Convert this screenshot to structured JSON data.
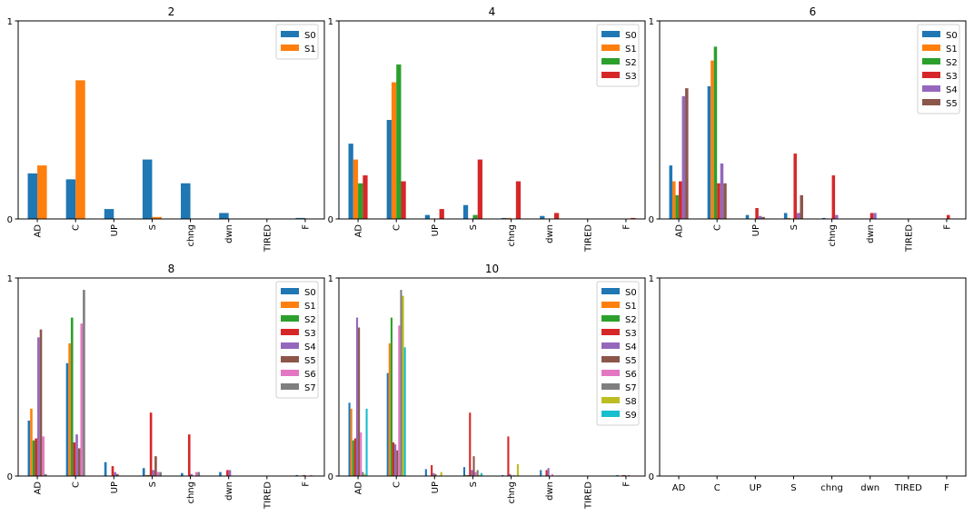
{
  "chart_data": [
    {
      "type": "bar",
      "title": "2",
      "categories": [
        "AD",
        "C",
        "UP",
        "S",
        "chng",
        "dwn",
        "TIRED",
        "F"
      ],
      "ylim": [
        0,
        1
      ],
      "yticks": [
        "0",
        "1"
      ],
      "rotated_xticks": true,
      "legend": "top-right",
      "series": [
        {
          "name": "S0",
          "values": [
            0.23,
            0.2,
            0.05,
            0.3,
            0.18,
            0.03,
            0.0,
            0.005
          ]
        },
        {
          "name": "S1",
          "values": [
            0.27,
            0.7,
            0.0,
            0.01,
            0.0,
            0.0,
            0.0,
            0.0
          ]
        }
      ]
    },
    {
      "type": "bar",
      "title": "4",
      "categories": [
        "AD",
        "C",
        "UP",
        "S",
        "chng",
        "dwn",
        "TIRED",
        "F"
      ],
      "ylim": [
        0,
        1
      ],
      "yticks": [
        "0",
        "1"
      ],
      "rotated_xticks": true,
      "legend": "top-right",
      "series": [
        {
          "name": "S0",
          "values": [
            0.38,
            0.5,
            0.02,
            0.07,
            0.005,
            0.015,
            0.0,
            0.0
          ]
        },
        {
          "name": "S1",
          "values": [
            0.3,
            0.69,
            0.0,
            0.0,
            0.005,
            0.0,
            0.0,
            0.0
          ]
        },
        {
          "name": "S2",
          "values": [
            0.18,
            0.78,
            0.0,
            0.02,
            0.0,
            0.0,
            0.0,
            0.0
          ]
        },
        {
          "name": "S3",
          "values": [
            0.22,
            0.19,
            0.05,
            0.3,
            0.19,
            0.03,
            0.0,
            0.005
          ]
        }
      ]
    },
    {
      "type": "bar",
      "title": "6",
      "categories": [
        "AD",
        "C",
        "UP",
        "S",
        "chng",
        "dwn",
        "TIRED",
        "F"
      ],
      "ylim": [
        0,
        1
      ],
      "yticks": [
        "0",
        "1"
      ],
      "rotated_xticks": true,
      "legend": "top-right",
      "series": [
        {
          "name": "S0",
          "values": [
            0.27,
            0.67,
            0.02,
            0.03,
            0.005,
            0.0,
            0.0,
            0.0
          ]
        },
        {
          "name": "S1",
          "values": [
            0.19,
            0.8,
            0.0,
            0.005,
            0.0,
            0.0,
            0.0,
            0.0
          ]
        },
        {
          "name": "S2",
          "values": [
            0.12,
            0.87,
            0.0,
            0.0,
            0.0,
            0.0,
            0.0,
            0.0
          ]
        },
        {
          "name": "S3",
          "values": [
            0.19,
            0.18,
            0.055,
            0.33,
            0.22,
            0.03,
            0.0,
            0.02
          ]
        },
        {
          "name": "S4",
          "values": [
            0.62,
            0.28,
            0.015,
            0.03,
            0.02,
            0.03,
            0.0,
            0.0
          ]
        },
        {
          "name": "S5",
          "values": [
            0.66,
            0.18,
            0.01,
            0.12,
            0.0,
            0.0,
            0.0,
            0.0
          ]
        }
      ]
    },
    {
      "type": "bar",
      "title": "8",
      "categories": [
        "AD",
        "C",
        "UP",
        "S",
        "chng",
        "dwn",
        "TIRED",
        "F"
      ],
      "ylim": [
        0,
        1
      ],
      "yticks": [
        "0",
        "1"
      ],
      "rotated_xticks": true,
      "legend": "top-right",
      "series": [
        {
          "name": "S0",
          "values": [
            0.28,
            0.57,
            0.07,
            0.04,
            0.015,
            0.02,
            0.0,
            0.005
          ]
        },
        {
          "name": "S1",
          "values": [
            0.34,
            0.67,
            0.0,
            0.005,
            0.0,
            0.0,
            0.0,
            0.0
          ]
        },
        {
          "name": "S2",
          "values": [
            0.18,
            0.8,
            0.0,
            0.005,
            0.0,
            0.0,
            0.0,
            0.0
          ]
        },
        {
          "name": "S3",
          "values": [
            0.19,
            0.17,
            0.05,
            0.32,
            0.21,
            0.03,
            0.0,
            0.005
          ]
        },
        {
          "name": "S4",
          "values": [
            0.7,
            0.21,
            0.02,
            0.03,
            0.01,
            0.03,
            0.0,
            0.0
          ]
        },
        {
          "name": "S5",
          "values": [
            0.74,
            0.14,
            0.01,
            0.1,
            0.0,
            0.0,
            0.0,
            0.0
          ]
        },
        {
          "name": "S6",
          "values": [
            0.2,
            0.77,
            0.0,
            0.02,
            0.02,
            0.0,
            0.0,
            0.005
          ]
        },
        {
          "name": "S7",
          "values": [
            0.01,
            0.94,
            0.0,
            0.02,
            0.02,
            0.0,
            0.0,
            0.0
          ]
        }
      ]
    },
    {
      "type": "bar",
      "title": "10",
      "categories": [
        "AD",
        "C",
        "UP",
        "S",
        "chng",
        "dwn",
        "TIRED",
        "F"
      ],
      "ylim": [
        0,
        1
      ],
      "yticks": [
        "0",
        "1"
      ],
      "rotated_xticks": true,
      "legend": "top-right",
      "series": [
        {
          "name": "S0",
          "values": [
            0.37,
            0.52,
            0.035,
            0.045,
            0.005,
            0.03,
            0.0,
            0.005
          ]
        },
        {
          "name": "S1",
          "values": [
            0.34,
            0.67,
            0.0,
            0.005,
            0.0,
            0.0,
            0.0,
            0.0
          ]
        },
        {
          "name": "S2",
          "values": [
            0.18,
            0.8,
            0.0,
            0.005,
            0.0,
            0.0,
            0.0,
            0.0
          ]
        },
        {
          "name": "S3",
          "values": [
            0.19,
            0.17,
            0.055,
            0.32,
            0.2,
            0.03,
            0.0,
            0.005
          ]
        },
        {
          "name": "S4",
          "values": [
            0.8,
            0.16,
            0.015,
            0.03,
            0.01,
            0.04,
            0.0,
            0.005
          ]
        },
        {
          "name": "S5",
          "values": [
            0.75,
            0.13,
            0.01,
            0.1,
            0.0,
            0.0,
            0.0,
            0.0
          ]
        },
        {
          "name": "S6",
          "values": [
            0.22,
            0.76,
            0.0,
            0.02,
            0.005,
            0.01,
            0.0,
            0.005
          ]
        },
        {
          "name": "S7",
          "values": [
            0.02,
            0.94,
            0.0,
            0.03,
            0.0,
            0.0,
            0.0,
            0.0
          ]
        },
        {
          "name": "S8",
          "values": [
            0.01,
            0.91,
            0.02,
            0.005,
            0.06,
            0.0,
            0.0,
            0.0
          ]
        },
        {
          "name": "S9",
          "values": [
            0.34,
            0.65,
            0.0,
            0.015,
            0.0,
            0.0,
            0.0,
            0.0
          ]
        }
      ]
    },
    {
      "type": "bar",
      "title": "",
      "categories": [
        "AD",
        "C",
        "UP",
        "S",
        "chng",
        "dwn",
        "TIRED",
        "F"
      ],
      "ylim": [
        0,
        1
      ],
      "yticks": [
        "0",
        "1"
      ],
      "rotated_xticks": false,
      "legend": "none",
      "series": []
    }
  ],
  "colors": {
    "S0": "#1f77b4",
    "S1": "#ff7f0e",
    "S2": "#2ca02c",
    "S3": "#d62728",
    "S4": "#9467bd",
    "S5": "#8c564b",
    "S6": "#e377c2",
    "S7": "#7f7f7f",
    "S8": "#bcbd22",
    "S9": "#17becf"
  }
}
